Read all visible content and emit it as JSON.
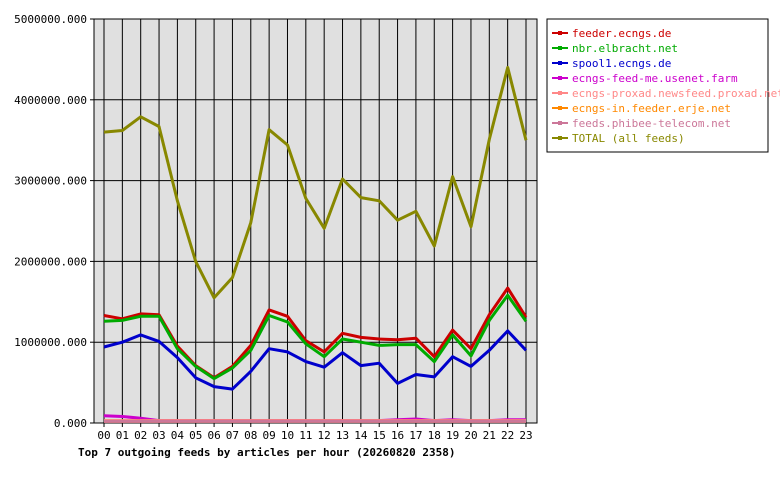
{
  "chart_data": {
    "type": "line",
    "title": "Top 7 outgoing feeds by articles per hour (20260820 2358)",
    "xlabel": "",
    "ylabel": "",
    "ylim": [
      0,
      5000000
    ],
    "yticks": [
      0,
      1000000,
      2000000,
      3000000,
      4000000,
      5000000
    ],
    "ytick_labels": [
      "0.000",
      "1000000.000",
      "2000000.000",
      "3000000.000",
      "4000000.000",
      "5000000.000"
    ],
    "grid": true,
    "legend_position": "right",
    "categories": [
      "00",
      "01",
      "02",
      "03",
      "04",
      "05",
      "06",
      "07",
      "08",
      "09",
      "10",
      "11",
      "12",
      "13",
      "14",
      "15",
      "16",
      "17",
      "18",
      "19",
      "20",
      "21",
      "22",
      "23"
    ],
    "series": [
      {
        "name": "feeder.ecngs.de",
        "color": "#cc0000",
        "values": [
          1330000,
          1290000,
          1350000,
          1340000,
          950000,
          710000,
          560000,
          700000,
          960000,
          1400000,
          1320000,
          1020000,
          880000,
          1110000,
          1060000,
          1040000,
          1030000,
          1050000,
          820000,
          1150000,
          920000,
          1340000,
          1670000,
          1310000
        ]
      },
      {
        "name": "nbr.elbracht.net",
        "color": "#00aa00",
        "values": [
          1260000,
          1270000,
          1320000,
          1320000,
          920000,
          700000,
          550000,
          680000,
          900000,
          1330000,
          1250000,
          980000,
          820000,
          1040000,
          1000000,
          960000,
          970000,
          970000,
          760000,
          1090000,
          830000,
          1270000,
          1580000,
          1260000
        ]
      },
      {
        "name": "spool1.ecngs.de",
        "color": "#0000cc",
        "values": [
          940000,
          1000000,
          1090000,
          1010000,
          810000,
          560000,
          450000,
          420000,
          640000,
          920000,
          880000,
          760000,
          690000,
          870000,
          710000,
          740000,
          490000,
          600000,
          570000,
          820000,
          700000,
          900000,
          1140000,
          900000
        ]
      },
      {
        "name": "ecngs-feed-me.usenet.farm",
        "color": "#cc00cc",
        "values": [
          90000,
          80000,
          60000,
          30000,
          30000,
          30000,
          30000,
          30000,
          30000,
          30000,
          30000,
          30000,
          30000,
          30000,
          30000,
          30000,
          40000,
          50000,
          30000,
          40000,
          30000,
          30000,
          40000,
          40000
        ]
      },
      {
        "name": "ecngs-proxad.newsfeed.proxad.net",
        "color": "#ff8888",
        "values": [
          30000,
          30000,
          30000,
          30000,
          30000,
          30000,
          30000,
          30000,
          30000,
          30000,
          30000,
          30000,
          30000,
          30000,
          30000,
          30000,
          30000,
          30000,
          30000,
          30000,
          30000,
          30000,
          30000,
          30000
        ]
      },
      {
        "name": "ecngs-in.feeder.erje.net",
        "color": "#ff8800",
        "values": [
          20000,
          20000,
          20000,
          20000,
          20000,
          20000,
          20000,
          20000,
          20000,
          20000,
          20000,
          20000,
          20000,
          20000,
          20000,
          20000,
          20000,
          20000,
          20000,
          20000,
          20000,
          20000,
          20000,
          20000
        ]
      },
      {
        "name": "feeds.phibee-telecom.net",
        "color": "#cc7799",
        "values": [
          20000,
          20000,
          20000,
          20000,
          20000,
          20000,
          20000,
          20000,
          20000,
          20000,
          20000,
          20000,
          20000,
          20000,
          20000,
          20000,
          20000,
          20000,
          20000,
          20000,
          20000,
          20000,
          20000,
          20000
        ]
      },
      {
        "name": "TOTAL (all feeds)",
        "color": "#888800",
        "values": [
          3600000,
          3620000,
          3790000,
          3670000,
          2750000,
          2000000,
          1550000,
          1800000,
          2480000,
          3630000,
          3440000,
          2780000,
          2410000,
          3020000,
          2790000,
          2750000,
          2510000,
          2620000,
          2190000,
          3050000,
          2430000,
          3510000,
          4400000,
          3500000
        ]
      }
    ]
  }
}
